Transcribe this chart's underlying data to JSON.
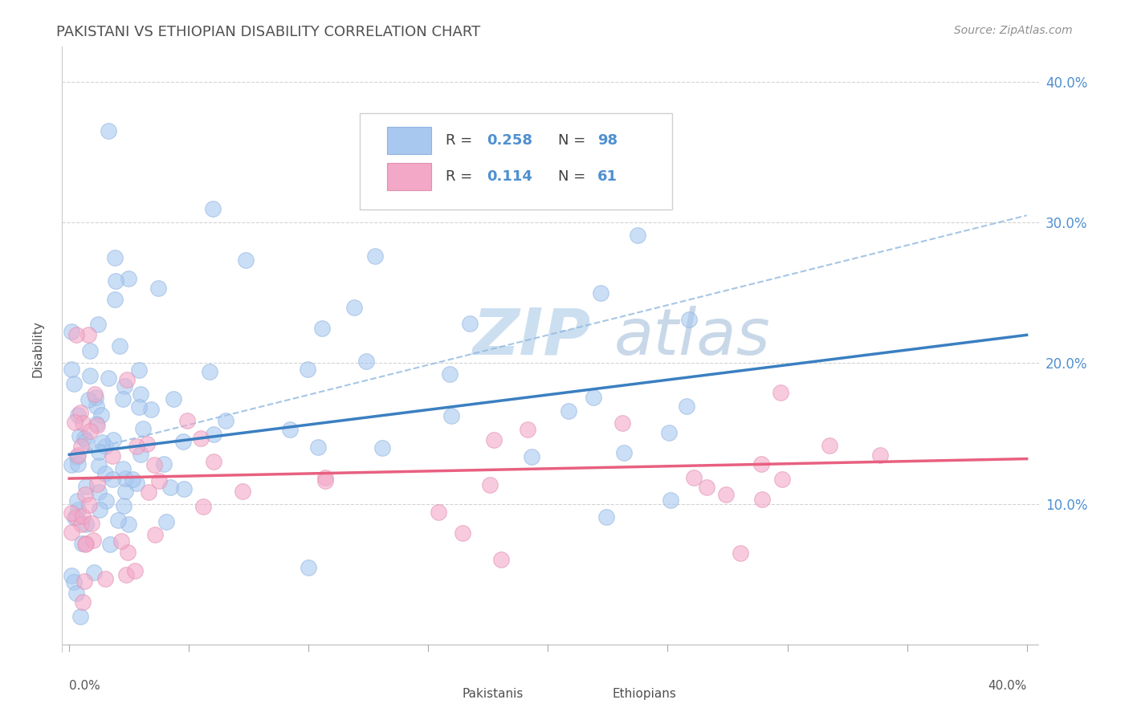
{
  "title": "PAKISTANI VS ETHIOPIAN DISABILITY CORRELATION CHART",
  "source": "Source: ZipAtlas.com",
  "ylabel": "Disability",
  "pakistani_color": "#a8c8f0",
  "ethiopian_color": "#f4a8c8",
  "line_blue_color": "#3a7fc1",
  "line_pink_color": "#e86080",
  "dashed_blue_color": "#90b8e0",
  "watermark_zip_color": "#ccdff0",
  "watermark_atlas_color": "#c8d8e8",
  "grid_color": "#c8c8c8",
  "background_color": "#ffffff",
  "title_color": "#505050",
  "source_color": "#909090",
  "axis_label_color": "#5090d0",
  "xlim": [
    0.0,
    0.4
  ],
  "ylim": [
    0.0,
    0.42
  ],
  "ytick_vals": [
    0.1,
    0.2,
    0.3,
    0.4
  ],
  "ytick_labels": [
    "10.0%",
    "20.0%",
    "30.0%",
    "40.0%"
  ],
  "blue_line_x0": 0.0,
  "blue_line_y0": 0.135,
  "blue_line_x1": 0.4,
  "blue_line_y1": 0.22,
  "pink_line_x0": 0.0,
  "pink_line_y0": 0.118,
  "pink_line_x1": 0.4,
  "pink_line_y1": 0.132,
  "dashed_line_x0": 0.0,
  "dashed_line_y0": 0.135,
  "dashed_line_x1": 0.4,
  "dashed_line_y1": 0.305
}
